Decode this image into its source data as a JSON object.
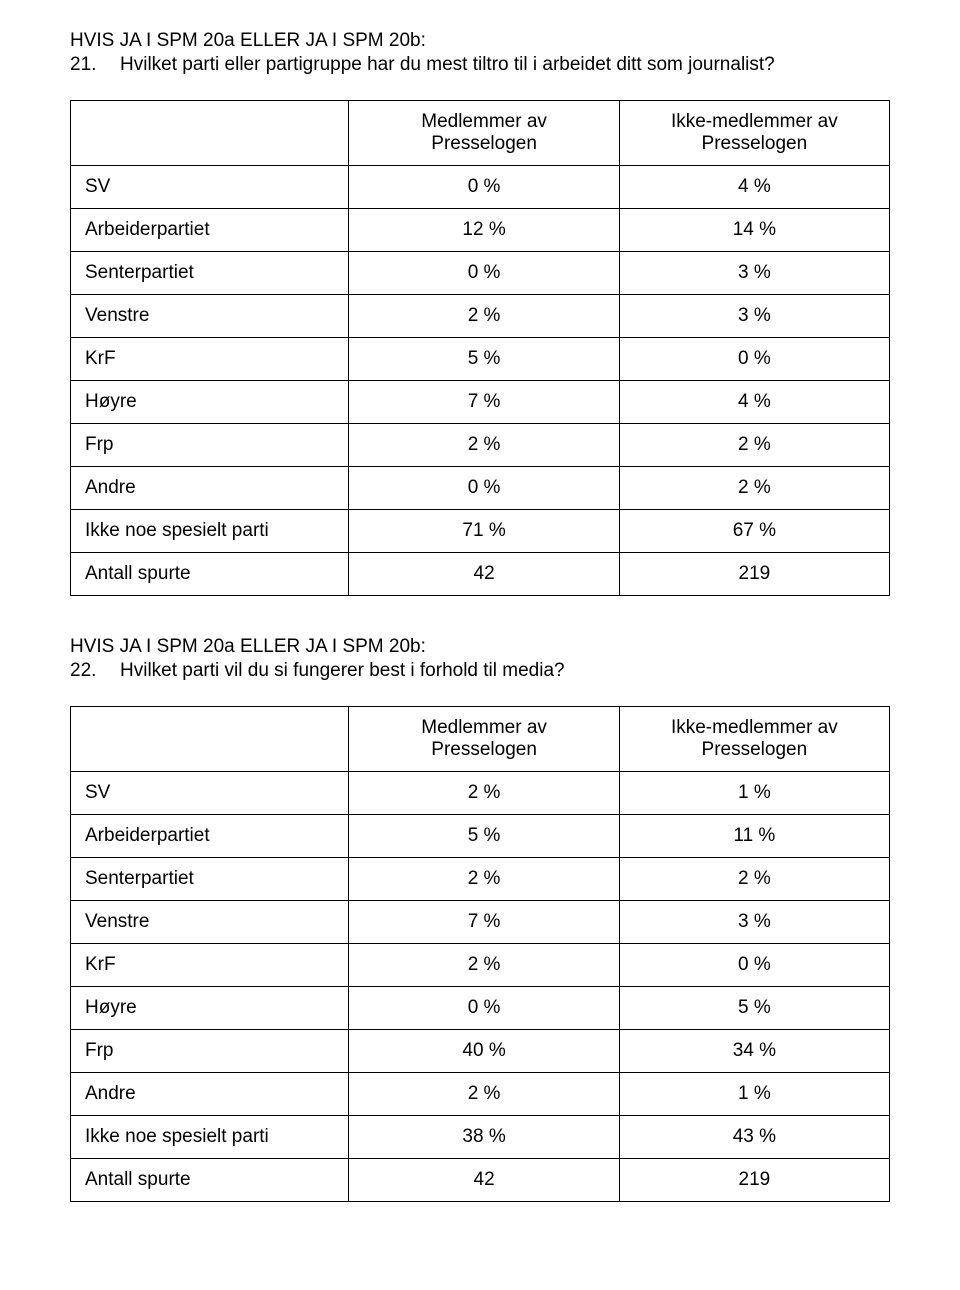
{
  "q21": {
    "condition": "HVIS JA I SPM 20a ELLER JA I SPM 20b:",
    "number": "21.",
    "text": "Hvilket parti eller partigruppe har du mest tiltro til i arbeidet ditt som journalist?",
    "col1_header_line1": "Medlemmer av",
    "col1_header_line2": "Presselogen",
    "col2_header_line1": "Ikke-medlemmer av",
    "col2_header_line2": "Presselogen",
    "rows": {
      "r0": {
        "label": "SV",
        "v1": "0 %",
        "v2": "4 %"
      },
      "r1": {
        "label": "Arbeiderpartiet",
        "v1": "12 %",
        "v2": "14 %"
      },
      "r2": {
        "label": "Senterpartiet",
        "v1": "0 %",
        "v2": "3 %"
      },
      "r3": {
        "label": "Venstre",
        "v1": "2 %",
        "v2": "3 %"
      },
      "r4": {
        "label": "KrF",
        "v1": "5 %",
        "v2": "0 %"
      },
      "r5": {
        "label": "Høyre",
        "v1": "7 %",
        "v2": "4 %"
      },
      "r6": {
        "label": "Frp",
        "v1": "2 %",
        "v2": "2 %"
      },
      "r7": {
        "label": "Andre",
        "v1": "0 %",
        "v2": "2 %"
      },
      "r8": {
        "label": "Ikke noe spesielt parti",
        "v1": "71 %",
        "v2": "67 %"
      },
      "r9": {
        "label": "Antall spurte",
        "v1": "42",
        "v2": "219"
      }
    }
  },
  "q22": {
    "condition": "HVIS JA I SPM 20a ELLER JA I SPM 20b:",
    "number": "22.",
    "text": "Hvilket parti vil du si fungerer best i forhold til media?",
    "col1_header_line1": "Medlemmer av",
    "col1_header_line2": "Presselogen",
    "col2_header_line1": "Ikke-medlemmer av",
    "col2_header_line2": "Presselogen",
    "rows": {
      "r0": {
        "label": "SV",
        "v1": "2 %",
        "v2": "1 %"
      },
      "r1": {
        "label": "Arbeiderpartiet",
        "v1": "5 %",
        "v2": "11 %"
      },
      "r2": {
        "label": "Senterpartiet",
        "v1": "2 %",
        "v2": "2 %"
      },
      "r3": {
        "label": "Venstre",
        "v1": "7 %",
        "v2": "3 %"
      },
      "r4": {
        "label": "KrF",
        "v1": "2 %",
        "v2": "0 %"
      },
      "r5": {
        "label": "Høyre",
        "v1": "0 %",
        "v2": "5 %"
      },
      "r6": {
        "label": "Frp",
        "v1": "40 %",
        "v2": "34 %"
      },
      "r7": {
        "label": "Andre",
        "v1": "2 %",
        "v2": "1 %"
      },
      "r8": {
        "label": "Ikke noe spesielt parti",
        "v1": "38 %",
        "v2": "43 %"
      },
      "r9": {
        "label": "Antall spurte",
        "v1": "42",
        "v2": "219"
      }
    }
  }
}
